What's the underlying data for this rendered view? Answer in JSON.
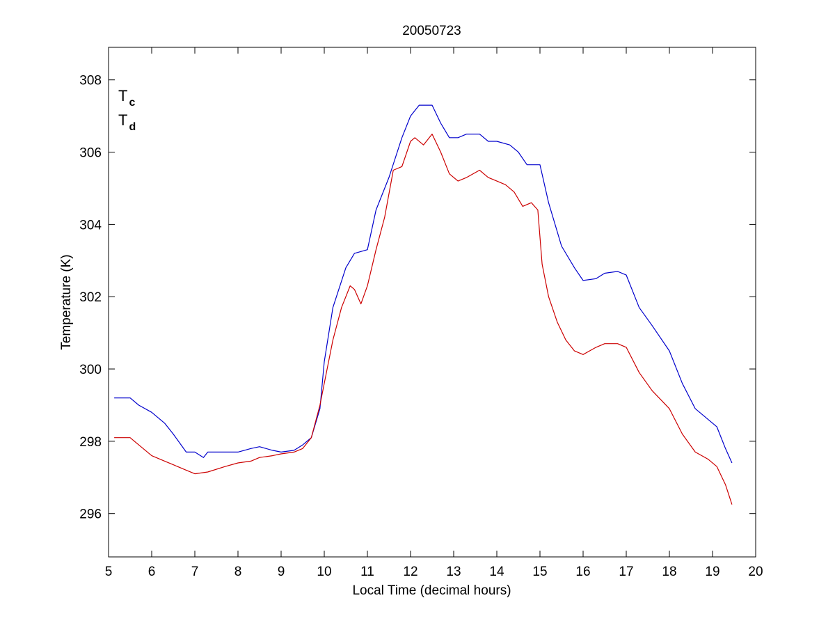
{
  "chart_data": {
    "type": "line",
    "title": "20050723",
    "xlabel": "Local Time (decimal hours)",
    "ylabel": "Temperature (K)",
    "xlim": [
      5,
      20
    ],
    "ylim": [
      294.8,
      308.9
    ],
    "xticks": [
      5,
      6,
      7,
      8,
      9,
      10,
      11,
      12,
      13,
      14,
      15,
      16,
      17,
      18,
      19,
      20
    ],
    "yticks": [
      296,
      298,
      300,
      302,
      304,
      306,
      308
    ],
    "grid": false,
    "legend_placement": "top-left",
    "series": [
      {
        "name": "T",
        "subscript": "c",
        "color": "#0000cc",
        "x": [
          5.13,
          5.5,
          5.7,
          6.0,
          6.3,
          6.5,
          6.8,
          7.0,
          7.2,
          7.3,
          7.7,
          8.0,
          8.3,
          8.5,
          8.8,
          9.0,
          9.3,
          9.5,
          9.7,
          9.9,
          10.0,
          10.2,
          10.5,
          10.7,
          11.0,
          11.2,
          11.5,
          11.8,
          12.0,
          12.2,
          12.5,
          12.7,
          12.9,
          13.1,
          13.3,
          13.6,
          13.8,
          14.0,
          14.3,
          14.5,
          14.7,
          15.0,
          15.2,
          15.5,
          15.8,
          16.0,
          16.3,
          16.5,
          16.8,
          17.0,
          17.3,
          17.6,
          18.0,
          18.3,
          18.6,
          18.9,
          19.1,
          19.3,
          19.45
        ],
        "y": [
          299.2,
          299.2,
          299.0,
          298.8,
          298.5,
          298.2,
          297.7,
          297.7,
          297.55,
          297.7,
          297.7,
          297.7,
          297.8,
          297.85,
          297.75,
          297.7,
          297.75,
          297.9,
          298.1,
          298.9,
          300.2,
          301.7,
          302.8,
          303.2,
          303.3,
          304.4,
          305.3,
          306.4,
          307.0,
          307.3,
          307.3,
          306.8,
          306.4,
          306.4,
          306.5,
          306.5,
          306.3,
          306.3,
          306.2,
          306.0,
          305.65,
          305.65,
          304.6,
          303.4,
          302.8,
          302.45,
          302.5,
          302.65,
          302.7,
          302.6,
          301.7,
          301.2,
          300.5,
          299.6,
          298.9,
          298.6,
          298.4,
          297.8,
          297.4
        ]
      },
      {
        "name": "T",
        "subscript": "d",
        "color": "#cc0000",
        "x": [
          5.13,
          5.5,
          5.7,
          6.0,
          6.3,
          6.5,
          6.8,
          7.0,
          7.3,
          7.7,
          8.0,
          8.3,
          8.5,
          8.8,
          9.0,
          9.3,
          9.5,
          9.7,
          9.9,
          10.0,
          10.2,
          10.4,
          10.6,
          10.7,
          10.85,
          11.0,
          11.2,
          11.4,
          11.6,
          11.8,
          12.0,
          12.1,
          12.3,
          12.5,
          12.7,
          12.9,
          13.1,
          13.3,
          13.6,
          13.8,
          14.0,
          14.2,
          14.4,
          14.6,
          14.8,
          14.95,
          15.05,
          15.2,
          15.4,
          15.6,
          15.8,
          16.0,
          16.3,
          16.5,
          16.8,
          17.0,
          17.3,
          17.6,
          18.0,
          18.3,
          18.6,
          18.9,
          19.1,
          19.3,
          19.45
        ],
        "y": [
          298.1,
          298.1,
          297.9,
          297.6,
          297.45,
          297.35,
          297.2,
          297.1,
          297.15,
          297.3,
          297.4,
          297.45,
          297.55,
          297.6,
          297.65,
          297.7,
          297.8,
          298.1,
          299.0,
          299.6,
          300.8,
          301.7,
          302.3,
          302.2,
          301.8,
          302.3,
          303.3,
          304.2,
          305.5,
          305.6,
          306.3,
          306.4,
          306.2,
          306.5,
          306.0,
          305.4,
          305.2,
          305.3,
          305.5,
          305.3,
          305.2,
          305.1,
          304.9,
          304.5,
          304.6,
          304.4,
          302.9,
          302.0,
          301.3,
          300.8,
          300.5,
          300.4,
          300.6,
          300.7,
          300.7,
          300.6,
          299.9,
          299.4,
          298.9,
          298.2,
          297.7,
          297.5,
          297.3,
          296.8,
          296.25
        ]
      }
    ]
  }
}
